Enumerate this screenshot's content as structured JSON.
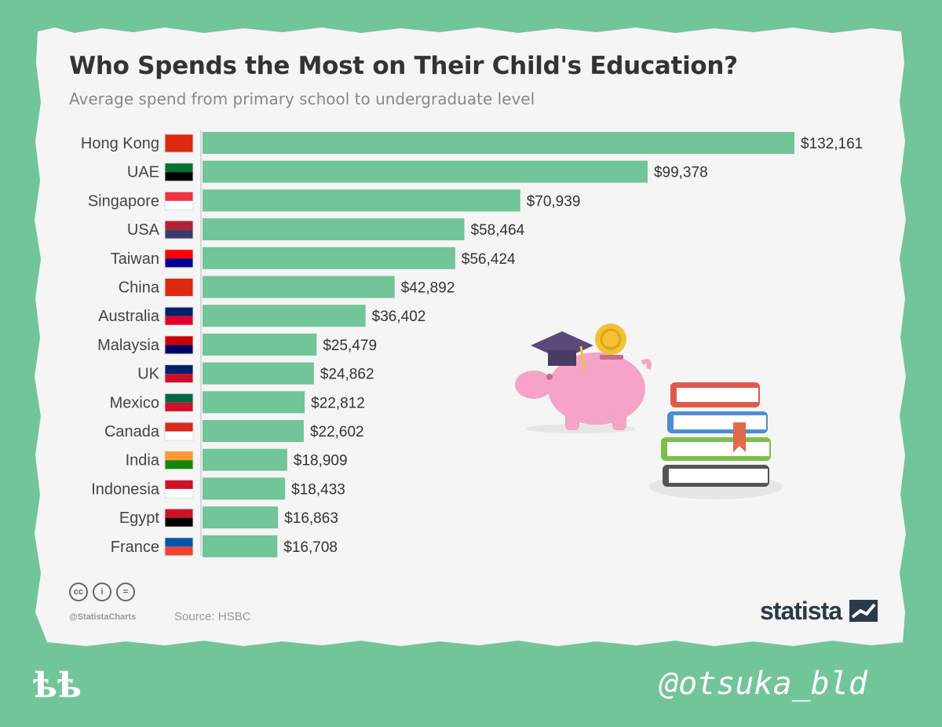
{
  "chart_data": {
    "type": "bar",
    "orientation": "horizontal",
    "title": "Who Spends the Most on Their Child's Education?",
    "subtitle": "Average spend from primary school to undergraduate level",
    "categories": [
      "Hong Kong",
      "UAE",
      "Singapore",
      "USA",
      "Taiwan",
      "China",
      "Australia",
      "Malaysia",
      "UK",
      "Mexico",
      "Canada",
      "India",
      "Indonesia",
      "Egypt",
      "France"
    ],
    "values": [
      132161,
      99378,
      70939,
      58464,
      56424,
      42892,
      36402,
      25479,
      24862,
      22812,
      22602,
      18909,
      18433,
      16863,
      16708
    ],
    "value_labels": [
      "$132,161",
      "$99,378",
      "$70,939",
      "$58,464",
      "$56,424",
      "$42,892",
      "$36,402",
      "$25,479",
      "$24,862",
      "$22,812",
      "$22,602",
      "$18,909",
      "$18,433",
      "$16,863",
      "$16,708"
    ],
    "xlim": [
      0,
      132161
    ],
    "grid": false,
    "legend": "none",
    "bar_color": "#72c499",
    "flag_icons": [
      "hong-kong-flag-icon",
      "uae-flag-icon",
      "singapore-flag-icon",
      "usa-flag-icon",
      "taiwan-flag-icon",
      "china-flag-icon",
      "australia-flag-icon",
      "malaysia-flag-icon",
      "uk-flag-icon",
      "mexico-flag-icon",
      "canada-flag-icon",
      "india-flag-icon",
      "indonesia-flag-icon",
      "egypt-flag-icon",
      "france-flag-icon"
    ]
  },
  "footer": {
    "handle": "@StatistaCharts",
    "source": "Source: HSBC",
    "brand": "statista",
    "license_icons": [
      "cc-icon",
      "attribution-icon",
      "no-derivatives-icon"
    ]
  },
  "overlay": {
    "signature": "@otsuka_bld",
    "logo": "ѣѣ"
  },
  "colors": {
    "background": "#72c499",
    "card": "#f5f5f5",
    "piggy": "#f5a3c7",
    "cap": "#5a4a7a",
    "coin": "#f2c232"
  }
}
